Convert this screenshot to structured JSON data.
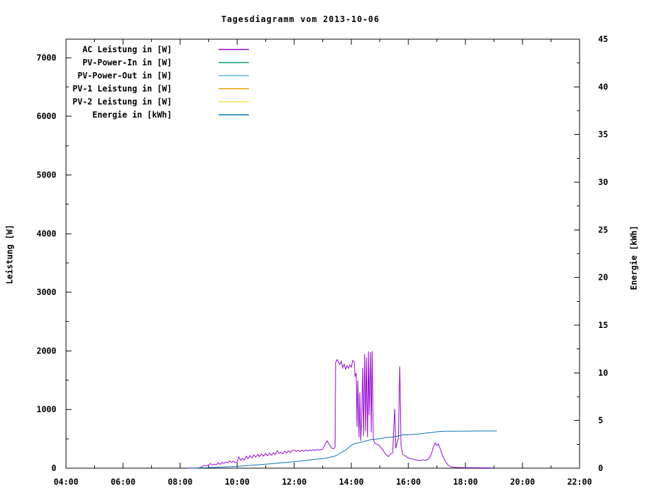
{
  "chart_data": {
    "type": "line",
    "title": "Tagesdiagramm vom 2013-10-06",
    "ylabel": "Leistung [W]",
    "y2label": "Energie [kWh]",
    "xlim": [
      4,
      22
    ],
    "ylim": [
      0,
      7315
    ],
    "y2lim": [
      0,
      45
    ],
    "x_tick_hours": [
      4,
      6,
      8,
      10,
      12,
      14,
      16,
      18,
      20,
      22
    ],
    "x_tick_labels": [
      "04:00",
      "06:00",
      "08:00",
      "10:00",
      "12:00",
      "14:00",
      "16:00",
      "18:00",
      "20:00",
      "22:00"
    ],
    "x_minor_hours": [
      5,
      7,
      9,
      11,
      13,
      15,
      17,
      19,
      21
    ],
    "y_ticks": [
      0,
      1000,
      2000,
      3000,
      4000,
      5000,
      6000,
      7000
    ],
    "y_minor_ticks": [
      500,
      1500,
      2500,
      3500,
      4500,
      5500,
      6500
    ],
    "y2_ticks": [
      0,
      5,
      10,
      15,
      20,
      25,
      30,
      35,
      40,
      45
    ],
    "y2_minor_ticks": [
      2.5,
      7.5,
      12.5,
      17.5,
      22.5,
      27.5,
      32.5,
      37.5,
      42.5
    ],
    "grid": false,
    "legend_position": "top-left",
    "frame_color": "#000000",
    "text_color": "#000000",
    "series": [
      {
        "name": "AC Leistung in [W]",
        "color": "#9400d3",
        "axis": "y1",
        "points": [
          [
            8.25,
            3
          ],
          [
            8.62,
            3
          ],
          [
            8.7,
            12
          ],
          [
            8.78,
            28
          ],
          [
            8.85,
            48
          ],
          [
            8.93,
            40
          ],
          [
            9.0,
            60
          ],
          [
            9.07,
            78
          ],
          [
            9.13,
            52
          ],
          [
            9.2,
            68
          ],
          [
            9.27,
            58
          ],
          [
            9.33,
            92
          ],
          [
            9.4,
            65
          ],
          [
            9.47,
            100
          ],
          [
            9.53,
            78
          ],
          [
            9.6,
            108
          ],
          [
            9.67,
            88
          ],
          [
            9.73,
            125
          ],
          [
            9.8,
            98
          ],
          [
            9.87,
            118
          ],
          [
            9.93,
            95
          ],
          [
            10.0,
            105
          ],
          [
            10.05,
            195
          ],
          [
            10.12,
            135
          ],
          [
            10.18,
            168
          ],
          [
            10.25,
            142
          ],
          [
            10.32,
            205
          ],
          [
            10.38,
            162
          ],
          [
            10.45,
            215
          ],
          [
            10.52,
            172
          ],
          [
            10.58,
            228
          ],
          [
            10.65,
            188
          ],
          [
            10.72,
            235
          ],
          [
            10.78,
            198
          ],
          [
            10.85,
            242
          ],
          [
            10.92,
            205
          ],
          [
            11.0,
            248
          ],
          [
            11.07,
            212
          ],
          [
            11.13,
            258
          ],
          [
            11.2,
            222
          ],
          [
            11.27,
            265
          ],
          [
            11.33,
            232
          ],
          [
            11.4,
            298
          ],
          [
            11.47,
            252
          ],
          [
            11.53,
            272
          ],
          [
            11.6,
            248
          ],
          [
            11.67,
            288
          ],
          [
            11.73,
            258
          ],
          [
            11.8,
            295
          ],
          [
            11.87,
            265
          ],
          [
            11.93,
            302
          ],
          [
            12.0,
            310
          ],
          [
            12.07,
            285
          ],
          [
            12.13,
            305
          ],
          [
            12.2,
            282
          ],
          [
            12.27,
            308
          ],
          [
            12.33,
            288
          ],
          [
            12.4,
            310
          ],
          [
            12.47,
            292
          ],
          [
            12.53,
            312
          ],
          [
            12.6,
            298
          ],
          [
            12.67,
            315
          ],
          [
            12.73,
            302
          ],
          [
            12.8,
            318
          ],
          [
            12.87,
            308
          ],
          [
            12.93,
            315
          ],
          [
            13.0,
            325
          ],
          [
            13.08,
            408
          ],
          [
            13.15,
            468
          ],
          [
            13.22,
            412
          ],
          [
            13.3,
            345
          ],
          [
            13.38,
            332
          ],
          [
            13.43,
            358
          ],
          [
            13.45,
            1798
          ],
          [
            13.5,
            1852
          ],
          [
            13.55,
            1812
          ],
          [
            13.6,
            1768
          ],
          [
            13.65,
            1822
          ],
          [
            13.7,
            1712
          ],
          [
            13.75,
            1772
          ],
          [
            13.8,
            1688
          ],
          [
            13.85,
            1748
          ],
          [
            13.9,
            1702
          ],
          [
            13.95,
            1762
          ],
          [
            14.0,
            1722
          ],
          [
            14.05,
            1838
          ],
          [
            14.1,
            1815
          ],
          [
            14.13,
            1560
          ],
          [
            14.17,
            1620
          ],
          [
            14.2,
            705
          ],
          [
            14.23,
            1495
          ],
          [
            14.27,
            528
          ],
          [
            14.3,
            1292
          ],
          [
            14.33,
            468
          ],
          [
            14.37,
            992
          ],
          [
            14.4,
            1712
          ],
          [
            14.43,
            548
          ],
          [
            14.47,
            1945
          ],
          [
            14.5,
            628
          ],
          [
            14.53,
            1888
          ],
          [
            14.57,
            528
          ],
          [
            14.6,
            1992
          ],
          [
            14.63,
            905
          ],
          [
            14.67,
            1978
          ],
          [
            14.7,
            612
          ],
          [
            14.73,
            1995
          ],
          [
            14.77,
            492
          ],
          [
            14.82,
            428
          ],
          [
            14.9,
            408
          ],
          [
            15.0,
            375
          ],
          [
            15.1,
            315
          ],
          [
            15.2,
            238
          ],
          [
            15.3,
            198
          ],
          [
            15.38,
            245
          ],
          [
            15.45,
            262
          ],
          [
            15.52,
            1012
          ],
          [
            15.56,
            338
          ],
          [
            15.6,
            425
          ],
          [
            15.65,
            515
          ],
          [
            15.7,
            1735
          ],
          [
            15.74,
            392
          ],
          [
            15.8,
            238
          ],
          [
            15.9,
            205
          ],
          [
            16.0,
            175
          ],
          [
            16.1,
            162
          ],
          [
            16.2,
            148
          ],
          [
            16.3,
            138
          ],
          [
            16.4,
            132
          ],
          [
            16.5,
            142
          ],
          [
            16.6,
            132
          ],
          [
            16.7,
            155
          ],
          [
            16.8,
            235
          ],
          [
            16.88,
            365
          ],
          [
            16.95,
            432
          ],
          [
            17.0,
            382
          ],
          [
            17.05,
            412
          ],
          [
            17.12,
            328
          ],
          [
            17.2,
            212
          ],
          [
            17.3,
            112
          ],
          [
            17.4,
            48
          ],
          [
            17.5,
            20
          ],
          [
            17.7,
            12
          ],
          [
            18.0,
            9
          ],
          [
            18.5,
            7
          ],
          [
            18.92,
            6
          ]
        ]
      },
      {
        "name": "PV-Power-In in [W]",
        "color": "#009e73",
        "axis": "y1",
        "points": []
      },
      {
        "name": "PV-Power-Out in [W]",
        "color": "#56b4e9",
        "axis": "y1",
        "points": []
      },
      {
        "name": "PV-1 Leistung in [W]",
        "color": "#e69f00",
        "axis": "y1",
        "points": []
      },
      {
        "name": "PV-2 Leistung in [W]",
        "color": "#f0e442",
        "axis": "y1",
        "points": []
      },
      {
        "name": "Energie in [kWh]",
        "color": "#0072b2",
        "axis": "y2",
        "points": [
          [
            8.3,
            0
          ],
          [
            8.6,
            0.02
          ],
          [
            9.0,
            0.06
          ],
          [
            9.3,
            0.1
          ],
          [
            9.6,
            0.14
          ],
          [
            10.0,
            0.2
          ],
          [
            10.3,
            0.26
          ],
          [
            10.6,
            0.33
          ],
          [
            11.0,
            0.42
          ],
          [
            11.3,
            0.5
          ],
          [
            11.6,
            0.58
          ],
          [
            12.0,
            0.68
          ],
          [
            12.3,
            0.78
          ],
          [
            12.6,
            0.88
          ],
          [
            13.0,
            1.0
          ],
          [
            13.2,
            1.1
          ],
          [
            13.45,
            1.3
          ],
          [
            13.6,
            1.55
          ],
          [
            13.8,
            1.9
          ],
          [
            14.0,
            2.4
          ],
          [
            14.15,
            2.6
          ],
          [
            14.3,
            2.7
          ],
          [
            14.5,
            2.85
          ],
          [
            14.7,
            3.0
          ],
          [
            14.9,
            3.05
          ],
          [
            15.0,
            3.1
          ],
          [
            15.2,
            3.2
          ],
          [
            15.4,
            3.25
          ],
          [
            15.6,
            3.35
          ],
          [
            15.8,
            3.5
          ],
          [
            16.0,
            3.5
          ],
          [
            16.2,
            3.55
          ],
          [
            16.4,
            3.6
          ],
          [
            16.6,
            3.68
          ],
          [
            16.8,
            3.73
          ],
          [
            16.95,
            3.8
          ],
          [
            17.1,
            3.85
          ],
          [
            17.3,
            3.87
          ],
          [
            17.6,
            3.88
          ],
          [
            18.0,
            3.89
          ],
          [
            18.5,
            3.9
          ],
          [
            19.1,
            3.9
          ]
        ]
      }
    ]
  }
}
